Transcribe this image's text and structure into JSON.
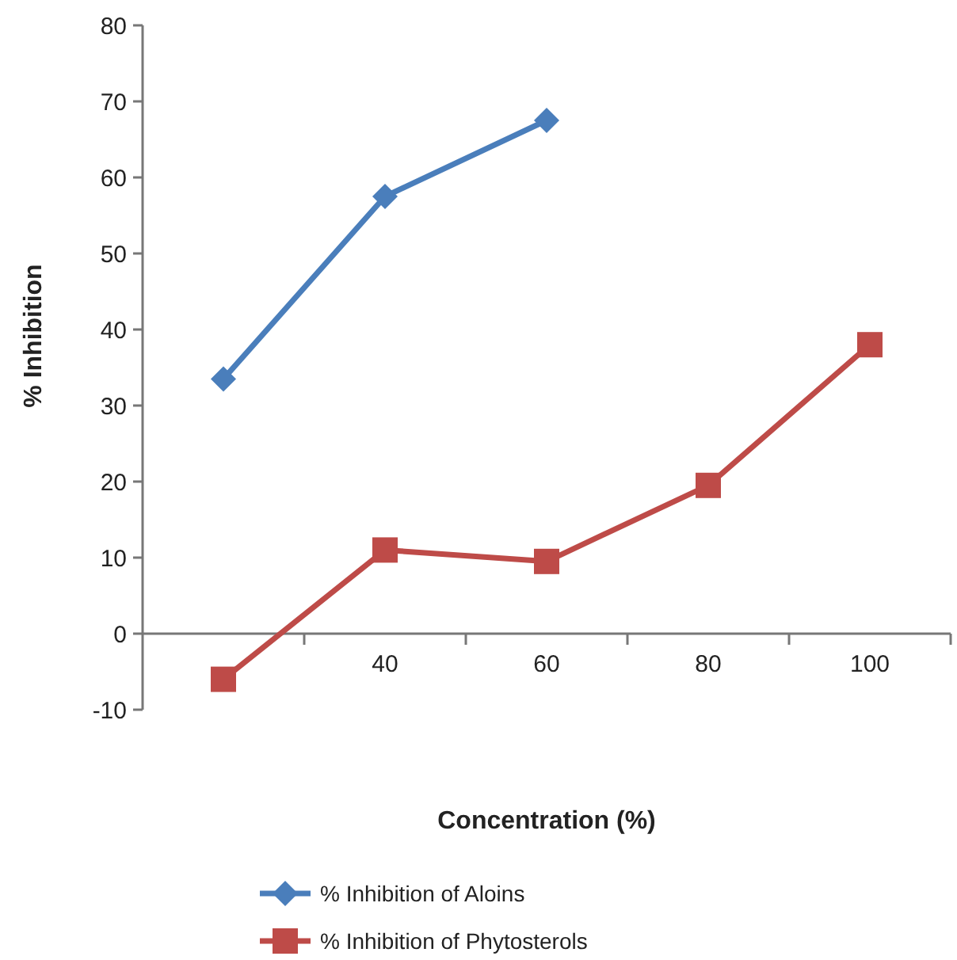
{
  "chart_data": {
    "type": "line",
    "xlabel": "Concentration (%)",
    "ylabel": "% Inhibition",
    "categories": [
      null,
      "40",
      "60",
      "80",
      "100"
    ],
    "ylim": [
      -10,
      80
    ],
    "yticks": [
      -10,
      0,
      10,
      20,
      30,
      40,
      50,
      60,
      70,
      80
    ],
    "grid": false,
    "legend": "bottom",
    "series": [
      {
        "name": "% Inhibition of Aloins",
        "color": "#4a7ebb",
        "marker": "diamond",
        "values": [
          33.5,
          57.5,
          67.5,
          null,
          null
        ]
      },
      {
        "name": "% Inhibition of Phytosterols",
        "color": "#be4b48",
        "marker": "square",
        "values": [
          -6,
          11,
          9.5,
          19.5,
          38
        ]
      }
    ]
  }
}
